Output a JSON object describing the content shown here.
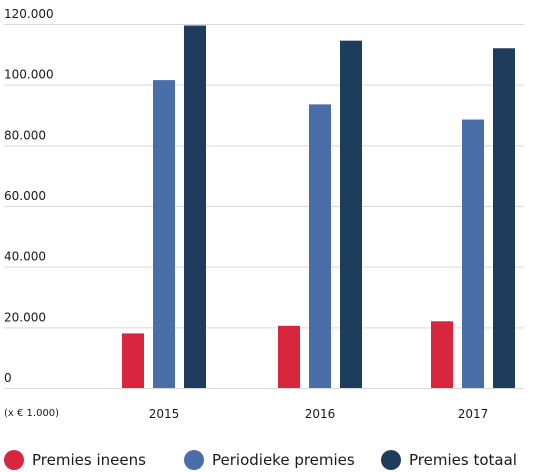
{
  "chart_data": {
    "type": "bar",
    "categories": [
      "2015",
      "2016",
      "2017"
    ],
    "series": [
      {
        "name": "Premies ineens",
        "color": "#d7263d",
        "values": [
          18000,
          20500,
          22000
        ]
      },
      {
        "name": "Periodieke premies",
        "color": "#4a6ea8",
        "values": [
          101500,
          93500,
          88500
        ]
      },
      {
        "name": "Premies totaal",
        "color": "#1e3d5c",
        "values": [
          119500,
          114500,
          112000
        ]
      }
    ],
    "y_ticks": [
      "0",
      "20.000",
      "40.000",
      "60.000",
      "80.000",
      "100.000",
      "120.000"
    ],
    "unit_label": "(x € 1.000)",
    "ylim": [
      0,
      120000
    ],
    "grid": true,
    "legend_position": "bottom"
  }
}
